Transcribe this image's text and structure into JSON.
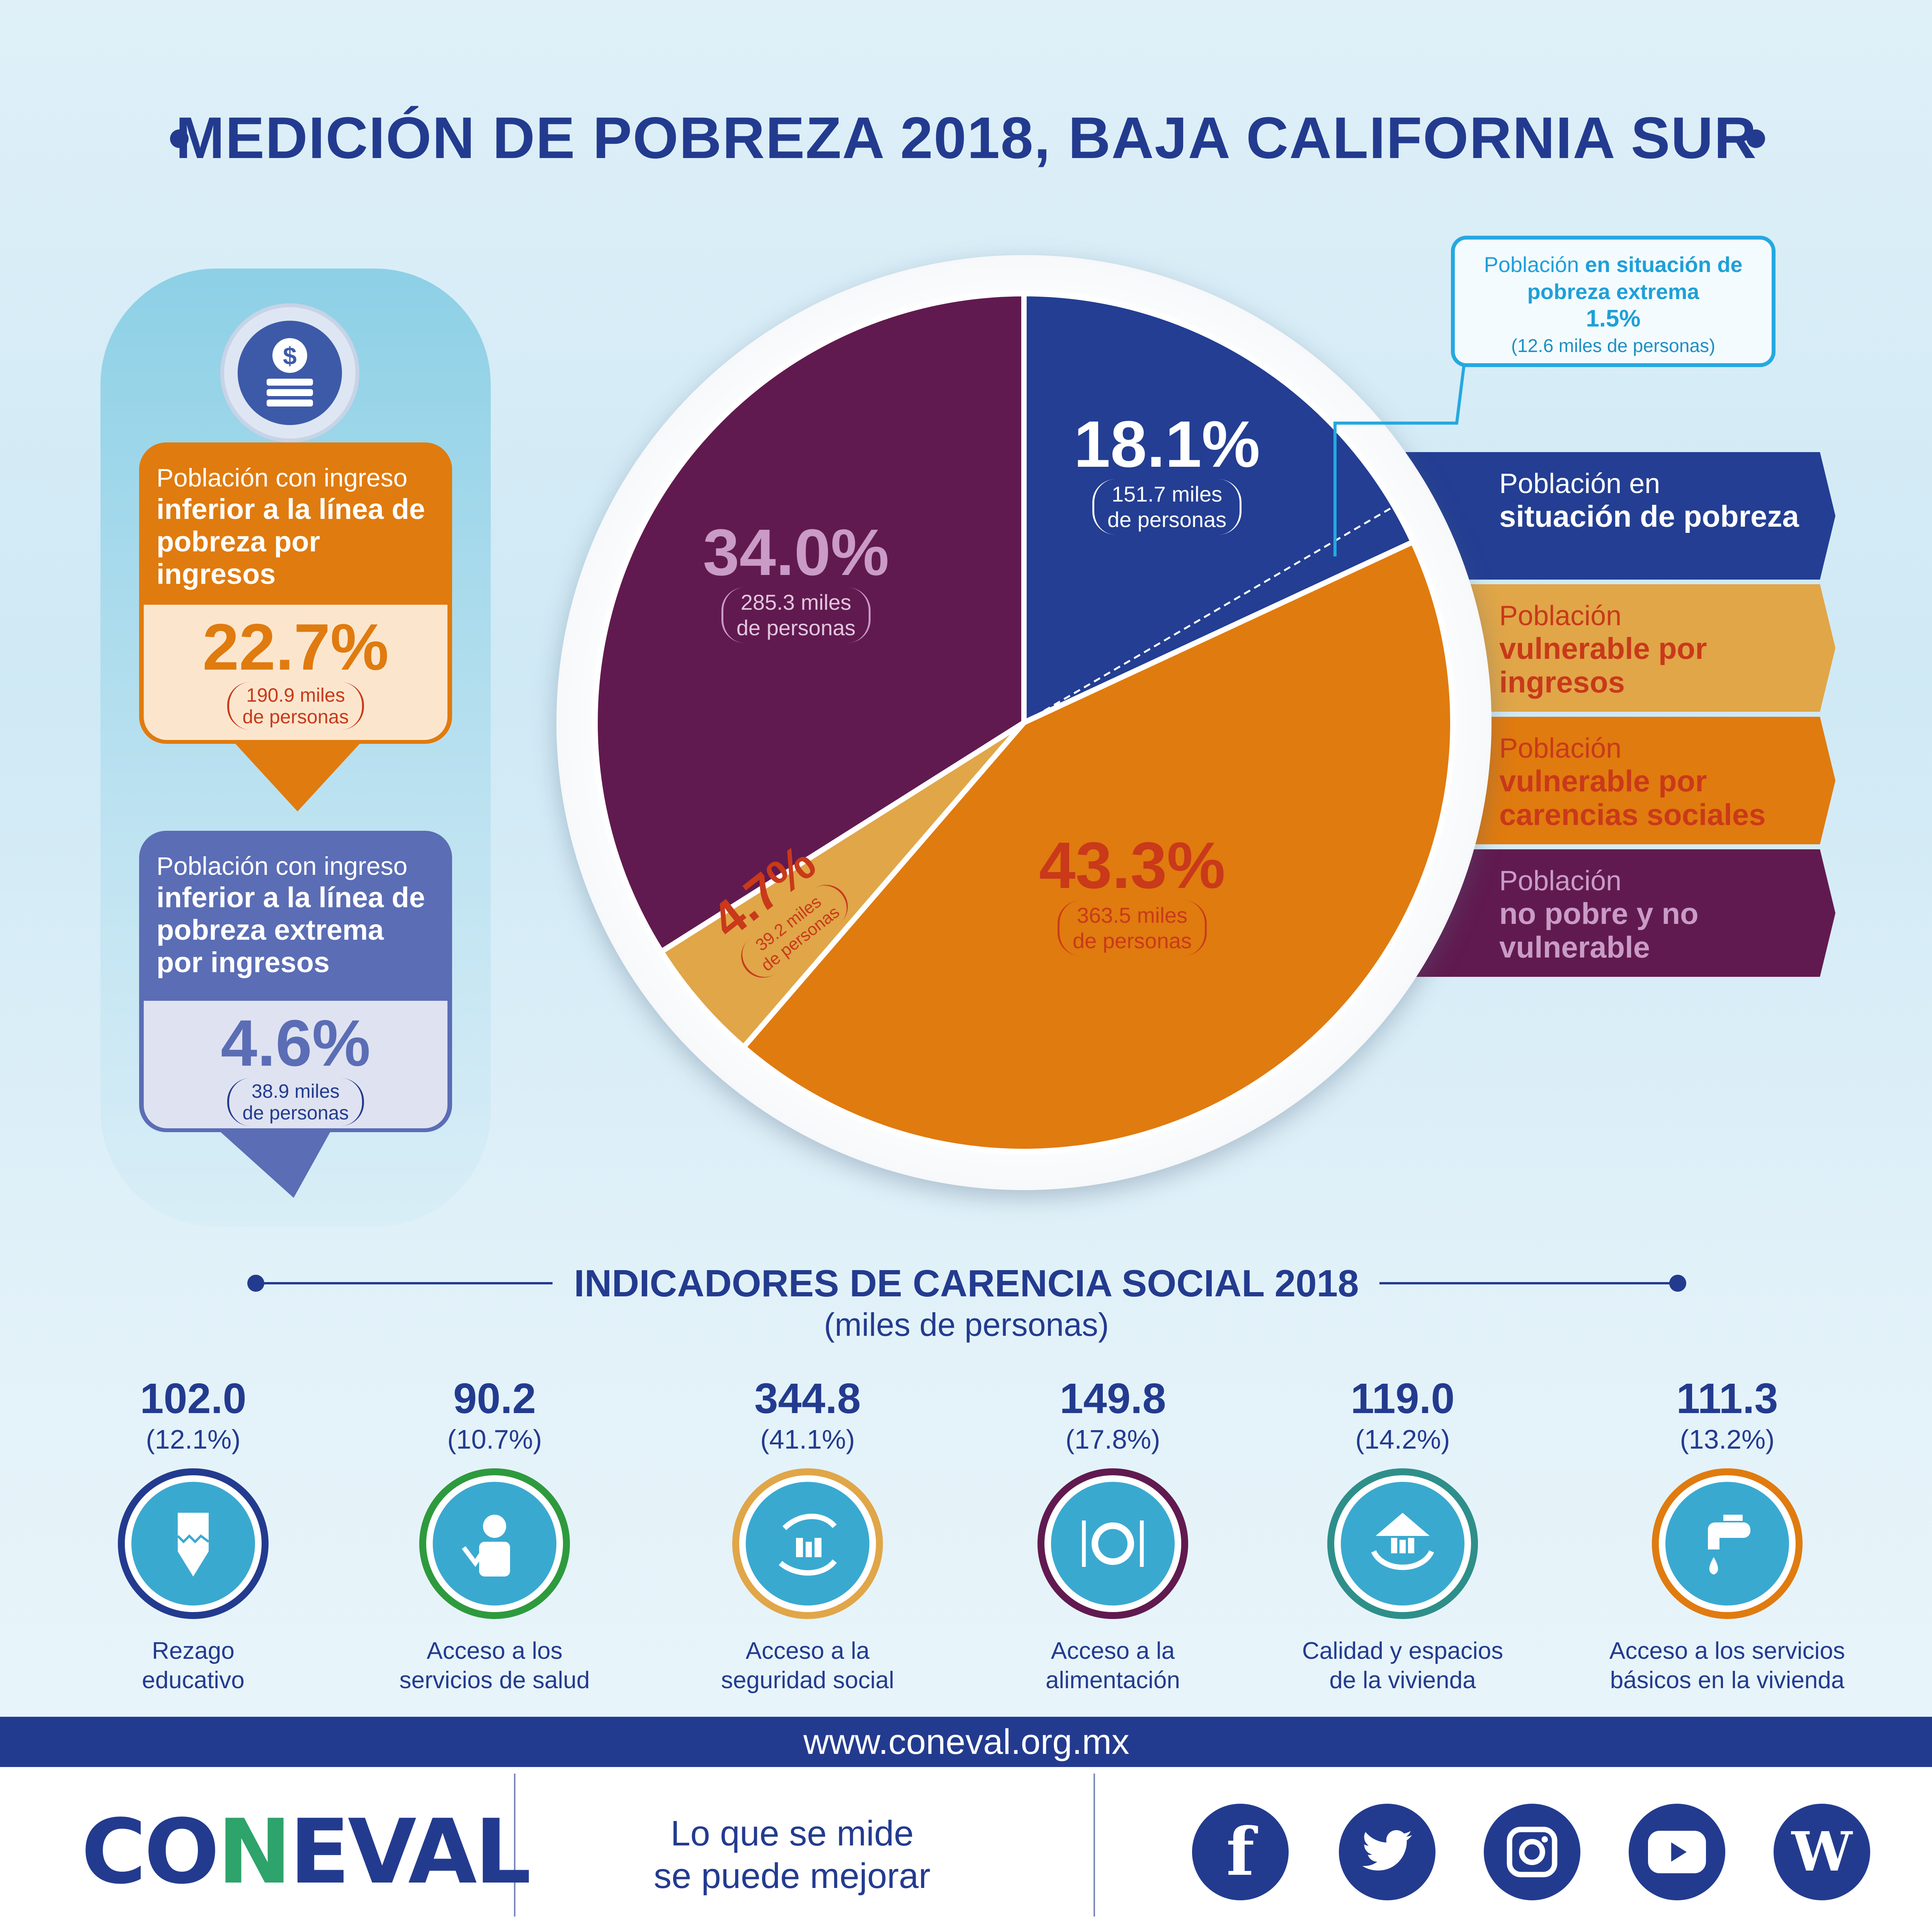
{
  "title": "MEDICIÓN DE POBREZA 2018, BAJA CALIFORNIA SUR",
  "left_cards": {
    "income_line": {
      "head_plain": "Población con ingreso",
      "head_bold": "inferior a la línea de pobreza por ingresos",
      "pct": "22.7%",
      "miles_1": "190.9 miles",
      "miles_2": "de personas"
    },
    "extreme_line": {
      "head_plain": "Población con ingreso",
      "head_bold": "inferior a la línea de pobreza extrema por ingresos",
      "pct": "4.6%",
      "miles_1": "38.9 miles",
      "miles_2": "de personas"
    }
  },
  "callout": {
    "plain": "Población",
    "bold": "en situación de pobreza extrema",
    "pct": "1.5%",
    "miles": "(12.6 miles de personas)"
  },
  "chart_data": {
    "type": "pie",
    "slices": [
      {
        "name": "Población en situación de pobreza",
        "value": 18.1,
        "pct_label": "18.1%",
        "miles_1": "151.7 miles",
        "miles_2": "de personas",
        "color": "#233e93"
      },
      {
        "name": "Población vulnerable por carencias sociales",
        "value": 43.3,
        "pct_label": "43.3%",
        "miles_1": "363.5 miles",
        "miles_2": "de personas",
        "color": "#e07b0f"
      },
      {
        "name": "Población vulnerable por ingresos",
        "value": 4.7,
        "pct_label": "4.7%",
        "miles_1": "39.2 miles",
        "miles_2": "de personas",
        "color": "#e0a648"
      },
      {
        "name": "Población no pobre y no vulnerable",
        "value": 34.0,
        "pct_label": "34.0%",
        "miles_1": "285.3 miles",
        "miles_2": "de personas",
        "color": "#611a4f"
      }
    ]
  },
  "legend": [
    {
      "plain": "Población en",
      "bold": "situación de pobreza",
      "bg": "#233e93",
      "plain_color": "#ffffff",
      "bold_color": "#ffffff"
    },
    {
      "plain": "Población",
      "bold": "vulnerable por ingresos",
      "bg": "#e0a648",
      "plain_color": "#c9391a",
      "bold_color": "#c9391a"
    },
    {
      "plain": "Población",
      "bold": "vulnerable por carencias sociales",
      "bg": "#e07b0f",
      "plain_color": "#c9391a",
      "bold_color": "#c9391a"
    },
    {
      "plain": "Población",
      "bold": "no pobre y no vulnerable",
      "bg": "#611a4f",
      "plain_color": "#c99bc6",
      "bold_color": "#c99bc6"
    }
  ],
  "indicators": {
    "title": "INDICADORES DE CARENCIA SOCIAL 2018",
    "subtitle": "(miles de personas)",
    "items": [
      {
        "value": "102.0",
        "pct": "(12.1%)",
        "label_1": "Rezago",
        "label_2": "educativo",
        "ring": "#233b8f",
        "icon": "pencil-icon"
      },
      {
        "value": "90.2",
        "pct": "(10.7%)",
        "label_1": "Acceso a los",
        "label_2": "servicios de salud",
        "ring": "#2e9a3e",
        "icon": "doctor-icon"
      },
      {
        "value": "344.8",
        "pct": "(41.1%)",
        "label_1": "Acceso a la",
        "label_2": "seguridad social",
        "ring": "#e0a648",
        "icon": "family-hands-icon"
      },
      {
        "value": "149.8",
        "pct": "(17.8%)",
        "label_1": "Acceso a la",
        "label_2": "alimentación",
        "ring": "#611a4f",
        "icon": "plate-icon"
      },
      {
        "value": "119.0",
        "pct": "(14.2%)",
        "label_1": "Calidad y espacios",
        "label_2": "de la vivienda",
        "ring": "#2e8f8a",
        "icon": "house-icon"
      },
      {
        "value": "111.3",
        "pct": "(13.2%)",
        "label_1": "Acceso a los servicios",
        "label_2": "básicos en la vivienda",
        "ring": "#e07b0f",
        "icon": "faucet-icon"
      }
    ]
  },
  "footer": {
    "url": "www.coneval.org.mx",
    "logo_text": "CONEVAL",
    "slogan_1": "Lo que se mide",
    "slogan_2": "se puede mejorar",
    "social": [
      "facebook-icon",
      "twitter-icon",
      "instagram-icon",
      "youtube-icon",
      "wikipedia-icon"
    ]
  }
}
